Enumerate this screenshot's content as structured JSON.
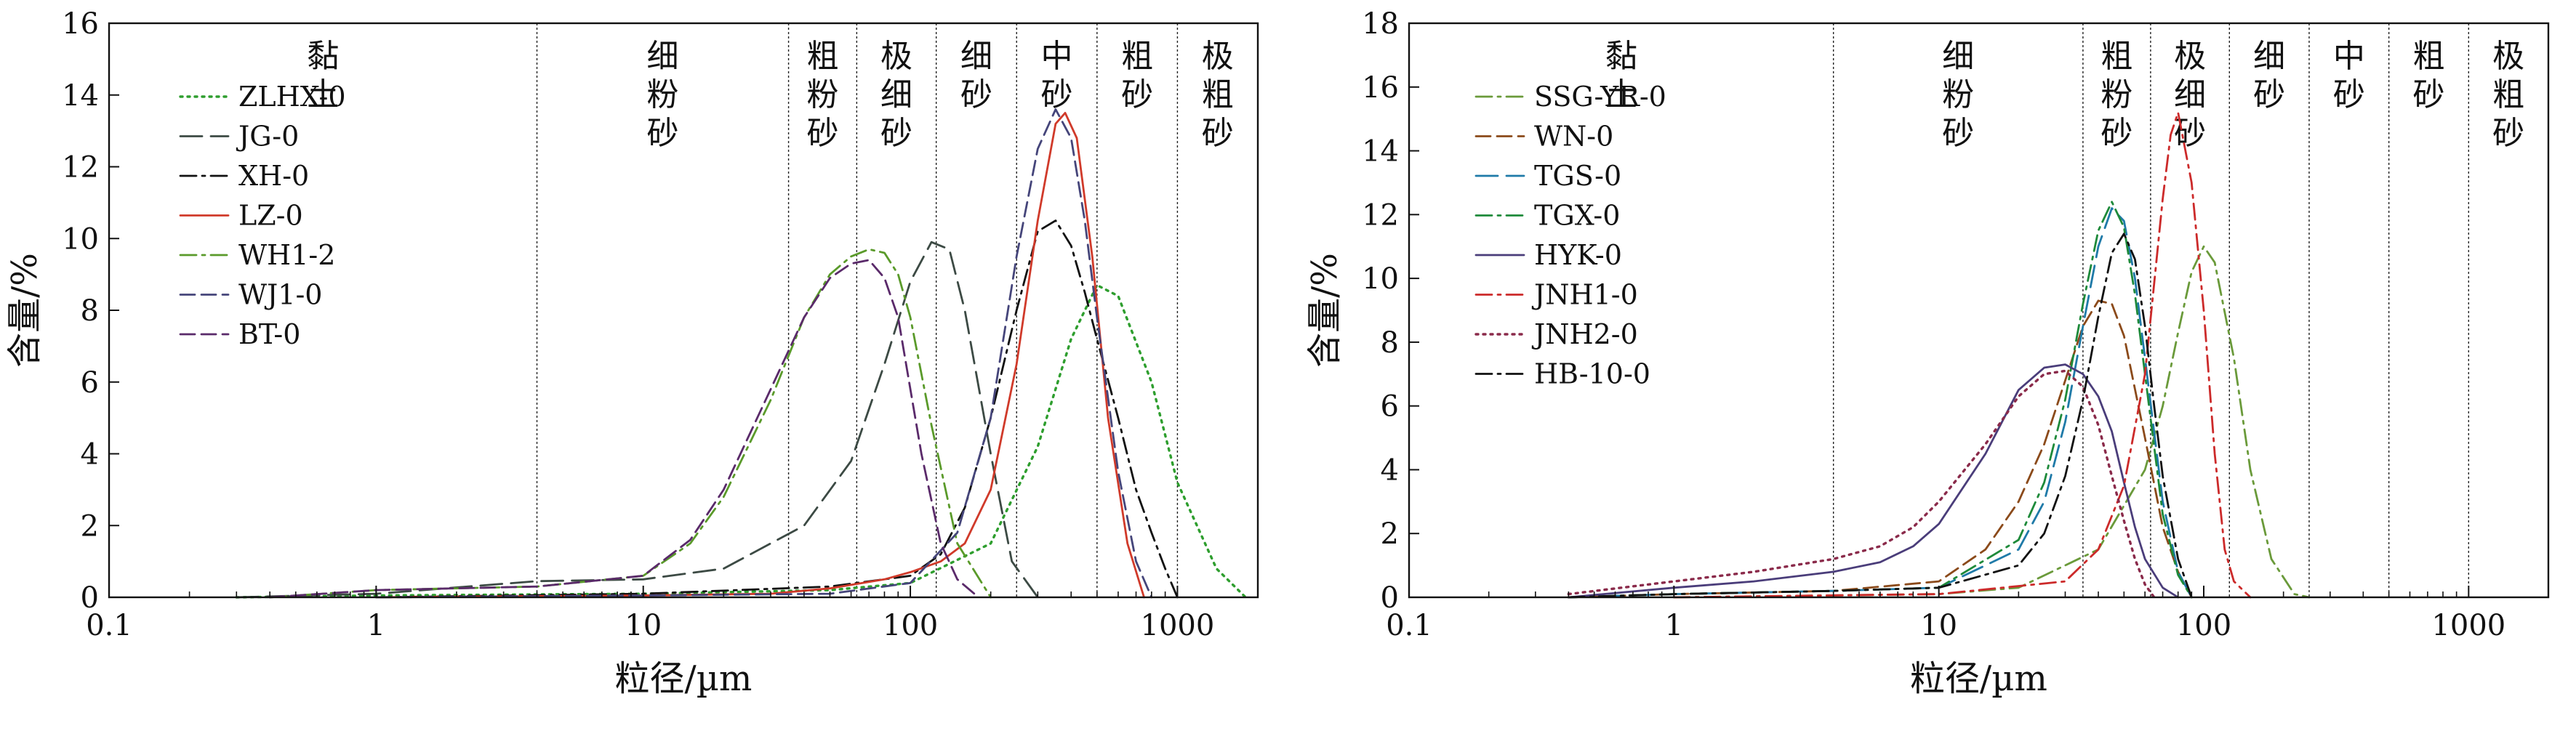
{
  "chart_data": [
    {
      "type": "line",
      "x_scale": "log",
      "xlim": [
        0.1,
        2000
      ],
      "ylim": [
        0,
        16
      ],
      "xlabel": "粒径/µm",
      "ylabel": "含量/%",
      "xticks": [
        "0.1",
        "1",
        "10",
        "100",
        "1000"
      ],
      "yticks": [
        "0",
        "2",
        "4",
        "6",
        "8",
        "10",
        "12",
        "14",
        "16"
      ],
      "region_boundaries": [
        4,
        35,
        63,
        125,
        250,
        500,
        1000
      ],
      "regions": [
        {
          "label": "黏土",
          "from": 0.1,
          "to": 4
        },
        {
          "label": "细粉砂",
          "from": 4,
          "to": 35
        },
        {
          "label": "粗粉砂",
          "from": 35,
          "to": 63
        },
        {
          "label": "极细砂",
          "from": 63,
          "to": 125
        },
        {
          "label": "细砂",
          "from": 125,
          "to": 250
        },
        {
          "label": "中砂",
          "from": 250,
          "to": 500
        },
        {
          "label": "粗砂",
          "from": 500,
          "to": 1000
        },
        {
          "label": "极粗砂",
          "from": 1000,
          "to": 2000
        }
      ],
      "series": [
        {
          "name": "ZLHX-0",
          "color": "#2e9e2e",
          "dash": "dot",
          "x": [
            0.3,
            1,
            10,
            50,
            100,
            200,
            300,
            400,
            500,
            600,
            800,
            1000,
            1400,
            1800
          ],
          "y": [
            0,
            0.05,
            0.1,
            0.2,
            0.4,
            1.5,
            4.2,
            7.2,
            8.7,
            8.4,
            6.0,
            3.2,
            0.8,
            0
          ]
        },
        {
          "name": "JG-0",
          "color": "#3c4a44",
          "dash": "longdash",
          "x": [
            0.3,
            1,
            4,
            10,
            20,
            40,
            60,
            80,
            100,
            120,
            140,
            160,
            200,
            240,
            300
          ],
          "y": [
            0,
            0.1,
            0.45,
            0.5,
            0.8,
            2.0,
            3.8,
            6.5,
            8.8,
            9.9,
            9.7,
            8.0,
            4.0,
            1.0,
            0
          ]
        },
        {
          "name": "XH-0",
          "color": "#111111",
          "dash": "dashdot",
          "x": [
            1,
            10,
            50,
            100,
            130,
            160,
            200,
            250,
            300,
            350,
            400,
            450,
            500,
            600,
            700,
            800,
            900,
            1000
          ],
          "y": [
            0,
            0.1,
            0.3,
            0.6,
            1.2,
            2.5,
            5.0,
            8.0,
            10.2,
            10.5,
            9.8,
            8.5,
            7.2,
            5.0,
            3.0,
            1.8,
            0.8,
            0
          ]
        },
        {
          "name": "LZ-0",
          "color": "#d03a2a",
          "dash": "solid",
          "x": [
            1,
            10,
            30,
            50,
            80,
            100,
            130,
            160,
            200,
            250,
            300,
            350,
            380,
            420,
            480,
            550,
            650,
            750
          ],
          "y": [
            0,
            0.05,
            0.1,
            0.25,
            0.5,
            0.7,
            1.0,
            1.5,
            3.0,
            6.5,
            10.5,
            13.2,
            13.5,
            12.8,
            9.5,
            5.0,
            1.5,
            0
          ]
        },
        {
          "name": "WH1-2",
          "color": "#5a9a2a",
          "dash": "dashdot",
          "x": [
            0.4,
            1,
            4,
            10,
            15,
            20,
            30,
            40,
            50,
            60,
            70,
            80,
            90,
            100,
            120,
            150,
            200
          ],
          "y": [
            0,
            0.2,
            0.3,
            0.6,
            1.5,
            2.8,
            5.5,
            7.8,
            9.0,
            9.5,
            9.7,
            9.6,
            9.0,
            7.8,
            4.8,
            1.5,
            0
          ]
        },
        {
          "name": "WJ1-0",
          "color": "#45457a",
          "dash": "dash",
          "x": [
            1,
            10,
            50,
            100,
            150,
            200,
            250,
            300,
            350,
            400,
            450,
            500,
            600,
            700,
            800
          ],
          "y": [
            0,
            0.05,
            0.1,
            0.4,
            1.8,
            5.0,
            9.5,
            12.5,
            13.6,
            12.8,
            10.5,
            7.8,
            3.5,
            1.0,
            0
          ]
        },
        {
          "name": "BT-0",
          "color": "#5a2a6a",
          "dash": "dash",
          "x": [
            0.4,
            1,
            4,
            10,
            15,
            20,
            30,
            40,
            50,
            60,
            70,
            80,
            90,
            100,
            110,
            130,
            150,
            180
          ],
          "y": [
            0,
            0.2,
            0.3,
            0.6,
            1.6,
            3.0,
            5.8,
            7.8,
            8.9,
            9.3,
            9.4,
            8.9,
            7.8,
            5.8,
            4.0,
            1.5,
            0.5,
            0
          ]
        }
      ]
    },
    {
      "type": "line",
      "x_scale": "log",
      "xlim": [
        0.1,
        2000
      ],
      "ylim": [
        0,
        18
      ],
      "xlabel": "粒径/µm",
      "ylabel": "含量/%",
      "xticks": [
        "0.1",
        "1",
        "10",
        "100",
        "1000"
      ],
      "yticks": [
        "0",
        "2",
        "4",
        "6",
        "8",
        "10",
        "12",
        "14",
        "16",
        "18"
      ],
      "region_boundaries": [
        4,
        35,
        63,
        125,
        250,
        500,
        1000
      ],
      "regions": [
        {
          "label": "黏土",
          "from": 0.1,
          "to": 4
        },
        {
          "label": "细粉砂",
          "from": 4,
          "to": 35
        },
        {
          "label": "粗粉砂",
          "from": 35,
          "to": 63
        },
        {
          "label": "极细砂",
          "from": 63,
          "to": 125
        },
        {
          "label": "细砂",
          "from": 125,
          "to": 250
        },
        {
          "label": "中砂",
          "from": 250,
          "to": 500
        },
        {
          "label": "粗砂",
          "from": 500,
          "to": 1000
        },
        {
          "label": "极粗砂",
          "from": 1000,
          "to": 2000
        }
      ],
      "series": [
        {
          "name": "SSG-YR-0",
          "color": "#6a9a3a",
          "dash": "dashdot",
          "x": [
            1,
            10,
            20,
            40,
            60,
            70,
            80,
            90,
            100,
            110,
            130,
            150,
            180,
            220,
            250
          ],
          "y": [
            0,
            0.1,
            0.3,
            1.5,
            4.0,
            6.0,
            8.3,
            10.2,
            11.0,
            10.5,
            7.5,
            4.0,
            1.2,
            0.1,
            0
          ]
        },
        {
          "name": "WN-0",
          "color": "#8b4a1a",
          "dash": "dash",
          "x": [
            0.4,
            1,
            4,
            10,
            15,
            20,
            25,
            30,
            35,
            40,
            45,
            50,
            60,
            70,
            80,
            90
          ],
          "y": [
            0,
            0.1,
            0.2,
            0.5,
            1.5,
            3.0,
            4.8,
            6.8,
            8.5,
            9.3,
            9.2,
            8.2,
            5.0,
            2.2,
            0.8,
            0
          ]
        },
        {
          "name": "TGS-0",
          "color": "#1f7aa8",
          "dash": "longdash",
          "x": [
            0.4,
            1,
            4,
            10,
            20,
            25,
            30,
            35,
            40,
            45,
            50,
            55,
            60,
            70,
            80,
            90
          ],
          "y": [
            0,
            0.1,
            0.2,
            0.3,
            1.5,
            3.0,
            5.5,
            8.5,
            11.0,
            12.2,
            11.8,
            10.0,
            7.5,
            3.0,
            0.8,
            0
          ]
        },
        {
          "name": "TGX-0",
          "color": "#1e8a3a",
          "dash": "dashdot",
          "x": [
            0.4,
            1,
            4,
            10,
            20,
            25,
            30,
            35,
            40,
            45,
            50,
            55,
            60,
            70,
            80,
            90
          ],
          "y": [
            0,
            0.1,
            0.2,
            0.3,
            1.8,
            3.6,
            6.2,
            9.2,
            11.5,
            12.4,
            11.6,
            9.5,
            7.0,
            2.6,
            0.7,
            0
          ]
        },
        {
          "name": "HYK-0",
          "color": "#4a3d7a",
          "dash": "solid",
          "x": [
            0.4,
            1,
            2,
            4,
            6,
            8,
            10,
            15,
            20,
            25,
            30,
            35,
            40,
            45,
            50,
            55,
            60,
            70,
            80
          ],
          "y": [
            0,
            0.3,
            0.5,
            0.8,
            1.1,
            1.6,
            2.3,
            4.5,
            6.5,
            7.2,
            7.3,
            7.0,
            6.3,
            5.2,
            3.6,
            2.2,
            1.2,
            0.3,
            0
          ]
        },
        {
          "name": "JNH1-0",
          "color": "#cc2a2a",
          "dash": "dashdot",
          "x": [
            1,
            10,
            30,
            40,
            50,
            60,
            70,
            75,
            80,
            90,
            100,
            110,
            120,
            130,
            150
          ],
          "y": [
            0,
            0.1,
            0.5,
            1.5,
            3.5,
            7.0,
            12.5,
            14.5,
            15.2,
            13.0,
            9.0,
            4.5,
            1.5,
            0.5,
            0
          ]
        },
        {
          "name": "JNH2-0",
          "color": "#8a2a4a",
          "dash": "dot",
          "x": [
            0.4,
            1,
            2,
            4,
            6,
            8,
            10,
            15,
            20,
            25,
            30,
            35,
            40,
            45,
            50,
            55,
            60,
            65
          ],
          "y": [
            0.1,
            0.5,
            0.8,
            1.2,
            1.6,
            2.2,
            3.0,
            4.8,
            6.3,
            7.0,
            7.1,
            6.6,
            5.4,
            3.8,
            2.4,
            1.2,
            0.4,
            0
          ]
        },
        {
          "name": "HB-10-0",
          "color": "#111111",
          "dash": "dashdot",
          "x": [
            0.4,
            1,
            4,
            10,
            20,
            25,
            30,
            35,
            40,
            45,
            50,
            55,
            60,
            65,
            70,
            80,
            90
          ],
          "y": [
            0,
            0.1,
            0.2,
            0.3,
            1.0,
            2.0,
            3.8,
            6.2,
            8.8,
            10.8,
            11.4,
            10.6,
            8.5,
            6.0,
            3.8,
            1.2,
            0
          ]
        }
      ]
    }
  ]
}
